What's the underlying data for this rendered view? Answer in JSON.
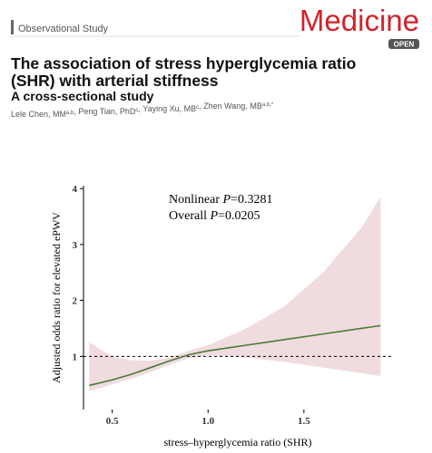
{
  "header": {
    "section": "Observational Study",
    "journal": "Medicine",
    "badge": "OPEN"
  },
  "title_lines": [
    "The association of stress hyperglycemia ratio",
    "(SHR) with arterial stiffness"
  ],
  "subtitle": "A cross-sectional study",
  "authors": [
    {
      "name": "Lele Chen, MM",
      "sup": "a,b"
    },
    {
      "name": ", Peng Tian, PhD",
      "sup": "c"
    },
    {
      "name": ", Yaying Xu, MB",
      "sup": "c"
    },
    {
      "name": ", Zhen Wang, MB",
      "sup": "a,b,*"
    }
  ],
  "chart_data": {
    "type": "line",
    "annotations": [
      {
        "prefix": "Nonlinear ",
        "italic": "P",
        "suffix": "=0.3281"
      },
      {
        "prefix": "Overall ",
        "italic": "P",
        "suffix": "=0.0205"
      }
    ],
    "x_label": "stress–hyperglycemia ratio (SHR)",
    "y_label": "Adjusted odds ratio for elevated ePWV",
    "x": [
      0.38,
      0.5,
      0.6,
      0.7,
      0.8,
      0.9,
      1.0,
      1.2,
      1.4,
      1.6,
      1.8,
      1.9
    ],
    "series": [
      {
        "color": "#4a7a3a",
        "band_color": "#f0dcdf",
        "values": [
          0.48,
          0.58,
          0.68,
          0.8,
          0.92,
          1.03,
          1.1,
          1.2,
          1.3,
          1.4,
          1.5,
          1.55
        ],
        "ci_lower": [
          0.38,
          0.5,
          0.6,
          0.72,
          0.85,
          0.97,
          1.02,
          0.98,
          0.9,
          0.8,
          0.7,
          0.65
        ],
        "ci_upper": [
          1.25,
          1.0,
          0.93,
          0.92,
          0.98,
          1.1,
          1.2,
          1.5,
          1.9,
          2.5,
          3.3,
          3.85
        ]
      }
    ],
    "reference_line": 1,
    "xlim": [
      0.35,
      1.96
    ],
    "ylim": [
      0.05,
      4.05
    ],
    "xticks": [
      0.5,
      {
        "value": 1,
        "label": "1.0"
      },
      1.5
    ],
    "yticks": [
      1,
      2,
      3,
      4
    ]
  }
}
